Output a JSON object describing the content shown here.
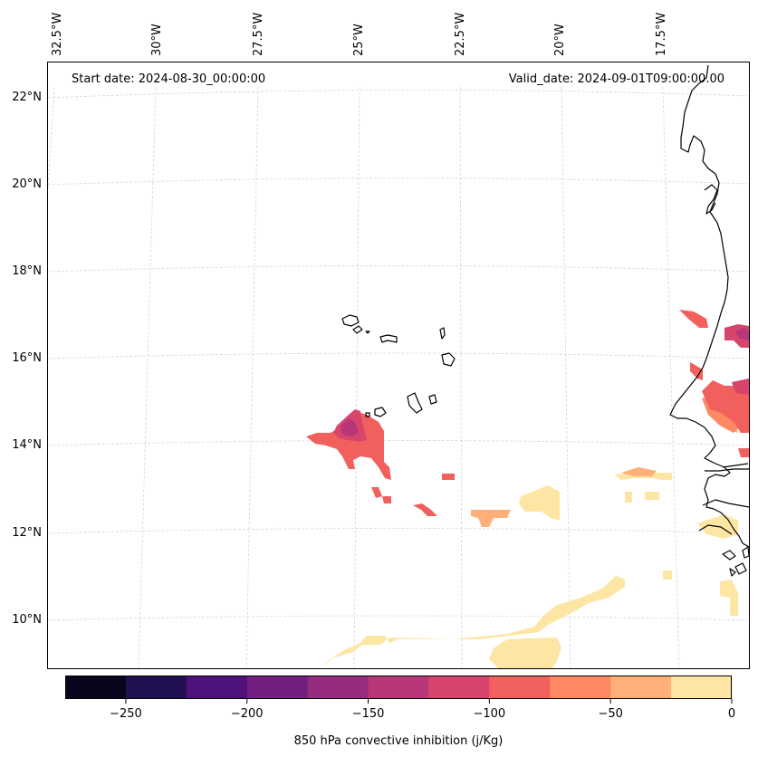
{
  "header": {
    "start_date": "Start date: 2024-08-30_00:00:00",
    "valid_date": "Valid_date: 2024-09-01T09:00:00.00"
  },
  "longitude_labels": [
    "32.5°W",
    "30°W",
    "27.5°W",
    "25°W",
    "22.5°W",
    "20°W",
    "17.5°W"
  ],
  "latitude_labels": [
    "22°N",
    "20°N",
    "18°N",
    "16°N",
    "14°N",
    "12°N",
    "10°N"
  ],
  "colorbar": {
    "label": "850 hPa convective inhibition (j/Kg)",
    "tick_labels": [
      "−250",
      "−200",
      "−150",
      "−100",
      "−50",
      "0"
    ],
    "tick_values": [
      -250,
      -200,
      -150,
      -100,
      -50,
      0
    ],
    "range": [
      -275,
      0
    ],
    "levels": [
      -275,
      -250,
      -225,
      -200,
      -175,
      -150,
      -125,
      -100,
      -75,
      -50,
      -25,
      0
    ],
    "colors": [
      "#07061c",
      "#221150",
      "#4f127b",
      "#721f81",
      "#952c80",
      "#b73779",
      "#d8456c",
      "#f1605d",
      "#fc8961",
      "#feb078",
      "#fde6a4"
    ]
  },
  "colors": {
    "coastline": "#000000",
    "gridline": "#d0d0d0",
    "frame": "#000000"
  }
}
